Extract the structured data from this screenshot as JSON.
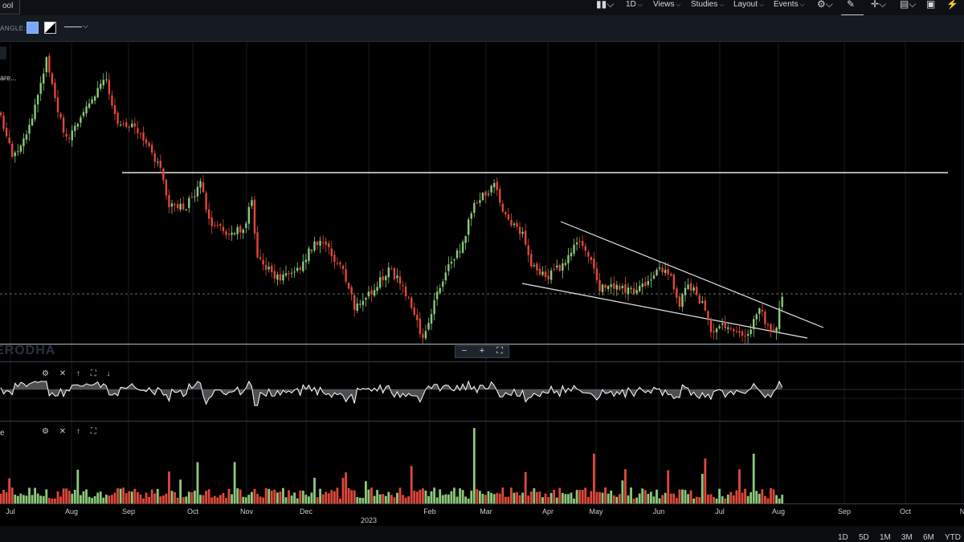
{
  "toolbar": {
    "tool_tab": "ool",
    "interval": "1D",
    "views": "Views",
    "studies": "Studies",
    "layout": "Layout",
    "events": "Events"
  },
  "drawing": {
    "label": "ANGLE:",
    "fill_color": "#7aa6ff"
  },
  "chart": {
    "title_fragment": "are...",
    "watermark": "ERODHA",
    "zoom_minus": "−",
    "zoom_plus": "+",
    "zoom_fit": "⛶",
    "pane1_controls": [
      "⚙",
      "✕",
      "↑",
      "⛶",
      "↓"
    ],
    "pane2_controls": [
      "⚙",
      "✕",
      "↑",
      "⛶"
    ],
    "volume_label": "e"
  },
  "colors": {
    "up": "#8cc97a",
    "down": "#e0483a",
    "background": "#000000",
    "trendline": "#e6e6e6"
  },
  "x_axis": {
    "months": [
      "Jul",
      "Aug",
      "Sep",
      "Oct",
      "Nov",
      "Dec",
      "Feb",
      "Mar",
      "Apr",
      "May",
      "Jun",
      "Jul",
      "Aug",
      "Sep",
      "Oct",
      "N"
    ],
    "year_label": "2023"
  },
  "ranges": [
    "1D",
    "5D",
    "1M",
    "3M",
    "6M",
    "YTD"
  ],
  "chart_data": {
    "type": "candlestick",
    "series": [
      {
        "name": "price",
        "type": "candlestick"
      },
      {
        "name": "oscillator",
        "type": "line"
      },
      {
        "name": "volume",
        "type": "bar"
      }
    ]
  }
}
